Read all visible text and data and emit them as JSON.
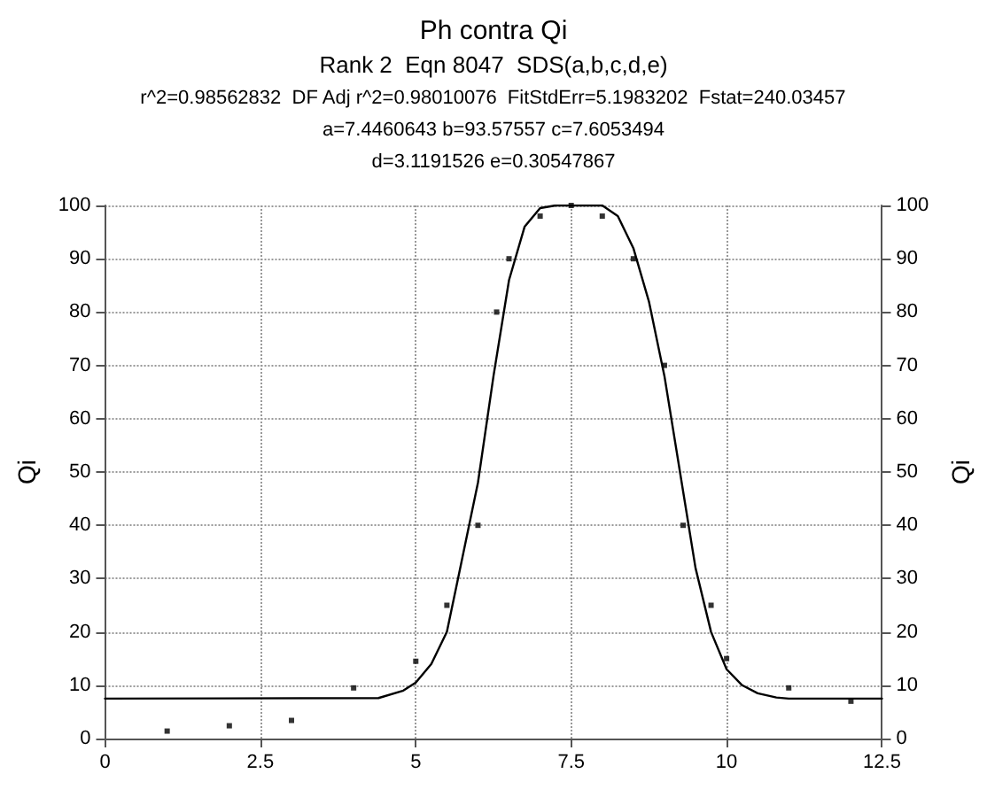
{
  "chart_data": {
    "type": "scatter",
    "title": "Ph contra Qi",
    "subtitle": "Rank 2  Eqn 8047  SDS(a,b,c,d,e)",
    "annotations": [
      "r^2=0.98562832  DF Adj r^2=0.98010076  FitStdErr=5.1983202  Fstat=240.03457",
      "a=7.4460643 b=93.57557 c=7.6053494",
      "d=3.1191526 e=0.30547867"
    ],
    "ylabel": "Qi",
    "y2label": "Qi",
    "xlim": [
      0,
      12.5
    ],
    "xticks": [
      0,
      2.5,
      5,
      7.5,
      10,
      12.5
    ],
    "ylim": [
      0,
      100
    ],
    "yticks": [
      0,
      10,
      20,
      30,
      40,
      50,
      60,
      70,
      80,
      90,
      100
    ],
    "y2lim": [
      0,
      100
    ],
    "y2ticks": [
      0,
      10,
      20,
      30,
      40,
      50,
      60,
      70,
      80,
      90,
      100
    ],
    "grid": true,
    "series": [
      {
        "marker": "square",
        "color": "#000000",
        "x": [
          1,
          2,
          3,
          4,
          5,
          5.5,
          6,
          6.3,
          6.5,
          7,
          7.5,
          8,
          8.5,
          9,
          9.3,
          9.75,
          10,
          11,
          12
        ],
        "values": [
          1.4,
          2.4,
          3.4,
          9.5,
          14.5,
          25,
          40,
          80,
          90,
          98,
          100,
          98,
          90,
          70,
          40,
          25,
          15,
          9.5,
          7
        ]
      },
      {
        "type": "line",
        "marker": "none",
        "line_style": "solid",
        "color": "#000000",
        "x": [
          0,
          4.4,
          4.8,
          5,
          5.25,
          5.5,
          5.67,
          6,
          6.25,
          6.5,
          6.75,
          7,
          7.25,
          7.5,
          8,
          8.25,
          8.5,
          8.75,
          9,
          9.25,
          9.5,
          9.75,
          10,
          10.25,
          10.5,
          10.8,
          11,
          12.5
        ],
        "values": [
          7.5,
          7.6,
          9,
          10.5,
          14,
          20,
          29.5,
          48,
          68,
          86,
          96,
          99.5,
          100,
          100,
          100,
          98,
          92,
          82,
          68,
          50,
          32,
          20,
          13,
          10,
          8.5,
          7.7,
          7.5,
          7.5
        ]
      }
    ]
  }
}
